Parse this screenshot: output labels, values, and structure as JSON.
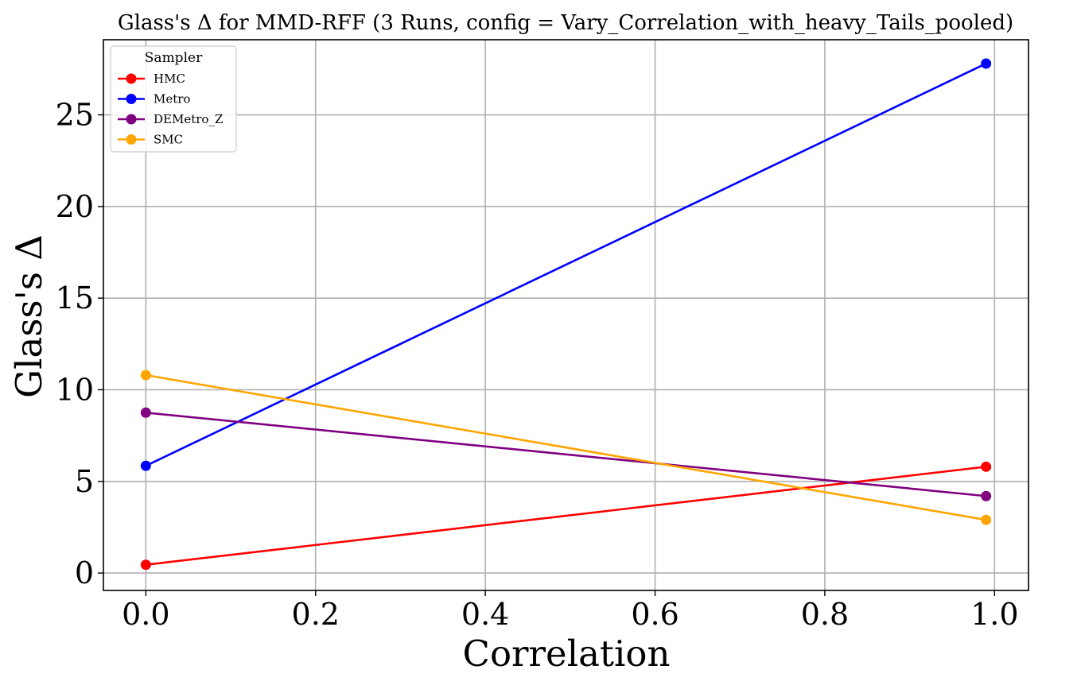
{
  "chart_data": {
    "type": "line",
    "title": "Glass's Δ for MMD-RFF (3 Runs, config = Vary_Correlation_with_heavy_Tails_pooled)",
    "xlabel": "Correlation",
    "ylabel": "Glass's Δ",
    "x": [
      0.0,
      0.99
    ],
    "xlim": [
      -0.05,
      1.04
    ],
    "ylim": [
      -0.95,
      29.1
    ],
    "xticks": [
      0.0,
      0.2,
      0.4,
      0.6,
      0.8,
      1.0
    ],
    "xtick_labels": [
      "0.0",
      "0.2",
      "0.4",
      "0.6",
      "0.8",
      "1.0"
    ],
    "yticks": [
      0,
      5,
      10,
      15,
      20,
      25
    ],
    "ytick_labels": [
      "0",
      "5",
      "10",
      "15",
      "20",
      "25"
    ],
    "grid": true,
    "legend": {
      "title": "Sampler",
      "position": "top-left"
    },
    "series": [
      {
        "name": "HMC",
        "color": "#ff0000",
        "values": [
          0.45,
          5.8
        ]
      },
      {
        "name": "Metro",
        "color": "#0000ff",
        "values": [
          5.85,
          27.8
        ]
      },
      {
        "name": "DEMetro_Z",
        "color": "#800080",
        "values": [
          8.75,
          4.2
        ]
      },
      {
        "name": "SMC",
        "color": "#ffa500",
        "values": [
          10.8,
          2.9
        ]
      }
    ]
  }
}
